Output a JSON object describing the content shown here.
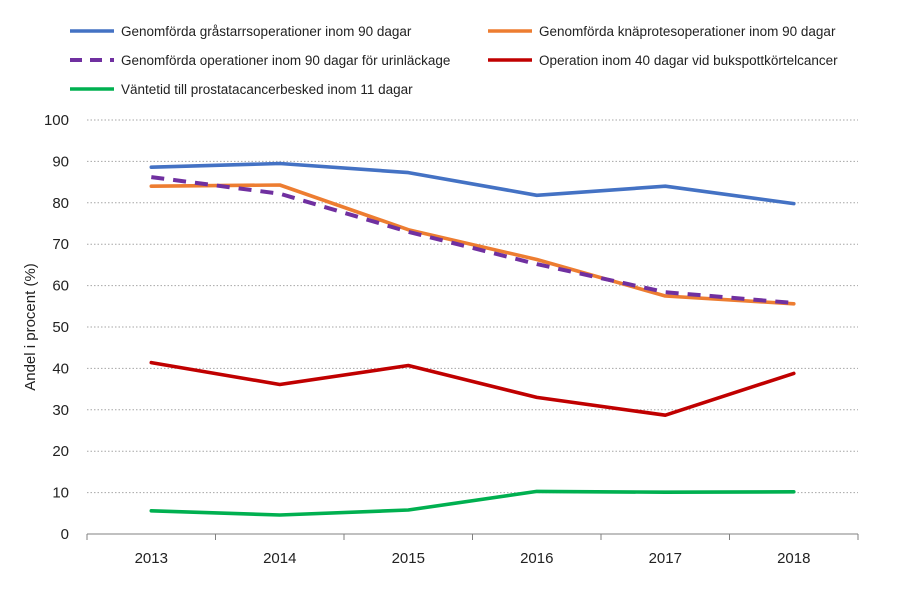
{
  "chart_data": {
    "type": "line",
    "title": "",
    "xlabel": "",
    "ylabel": "Andel i procent (%)",
    "ylim": [
      0,
      100
    ],
    "y_ticks": [
      0,
      10,
      20,
      30,
      40,
      50,
      60,
      70,
      80,
      90,
      100
    ],
    "grid": "horizontal-dotted",
    "legend_position": "top",
    "categories": [
      "2013",
      "2014",
      "2015",
      "2016",
      "2017",
      "2018"
    ],
    "series": [
      {
        "name": "Genomförda gråstarrsoperationer inom 90 dagar",
        "color": "#4472C4",
        "style": "solid",
        "values": [
          88.6,
          89.5,
          87.3,
          81.8,
          84.0,
          79.8
        ]
      },
      {
        "name": "Genomförda knäprotesoperationer inom 90 dagar",
        "color": "#ED7D31",
        "style": "solid",
        "values": [
          84.0,
          84.3,
          73.5,
          66.3,
          57.5,
          55.6
        ]
      },
      {
        "name": "Genomförda operationer inom 90 dagar för urinläckage",
        "color": "#7030A0",
        "style": "dashed",
        "values": [
          86.2,
          82.2,
          73.0,
          65.2,
          58.4,
          55.8
        ]
      },
      {
        "name": "Operation inom 40 dagar vid bukspottkörtelcancer",
        "color": "#C00000",
        "style": "solid",
        "values": [
          41.4,
          36.1,
          40.7,
          33.0,
          28.7,
          38.8
        ]
      },
      {
        "name": "Väntetid till prostatacancerbesked inom 11 dagar",
        "color": "#00B050",
        "style": "solid",
        "values": [
          5.6,
          4.6,
          5.8,
          10.3,
          10.1,
          10.2
        ]
      }
    ]
  }
}
